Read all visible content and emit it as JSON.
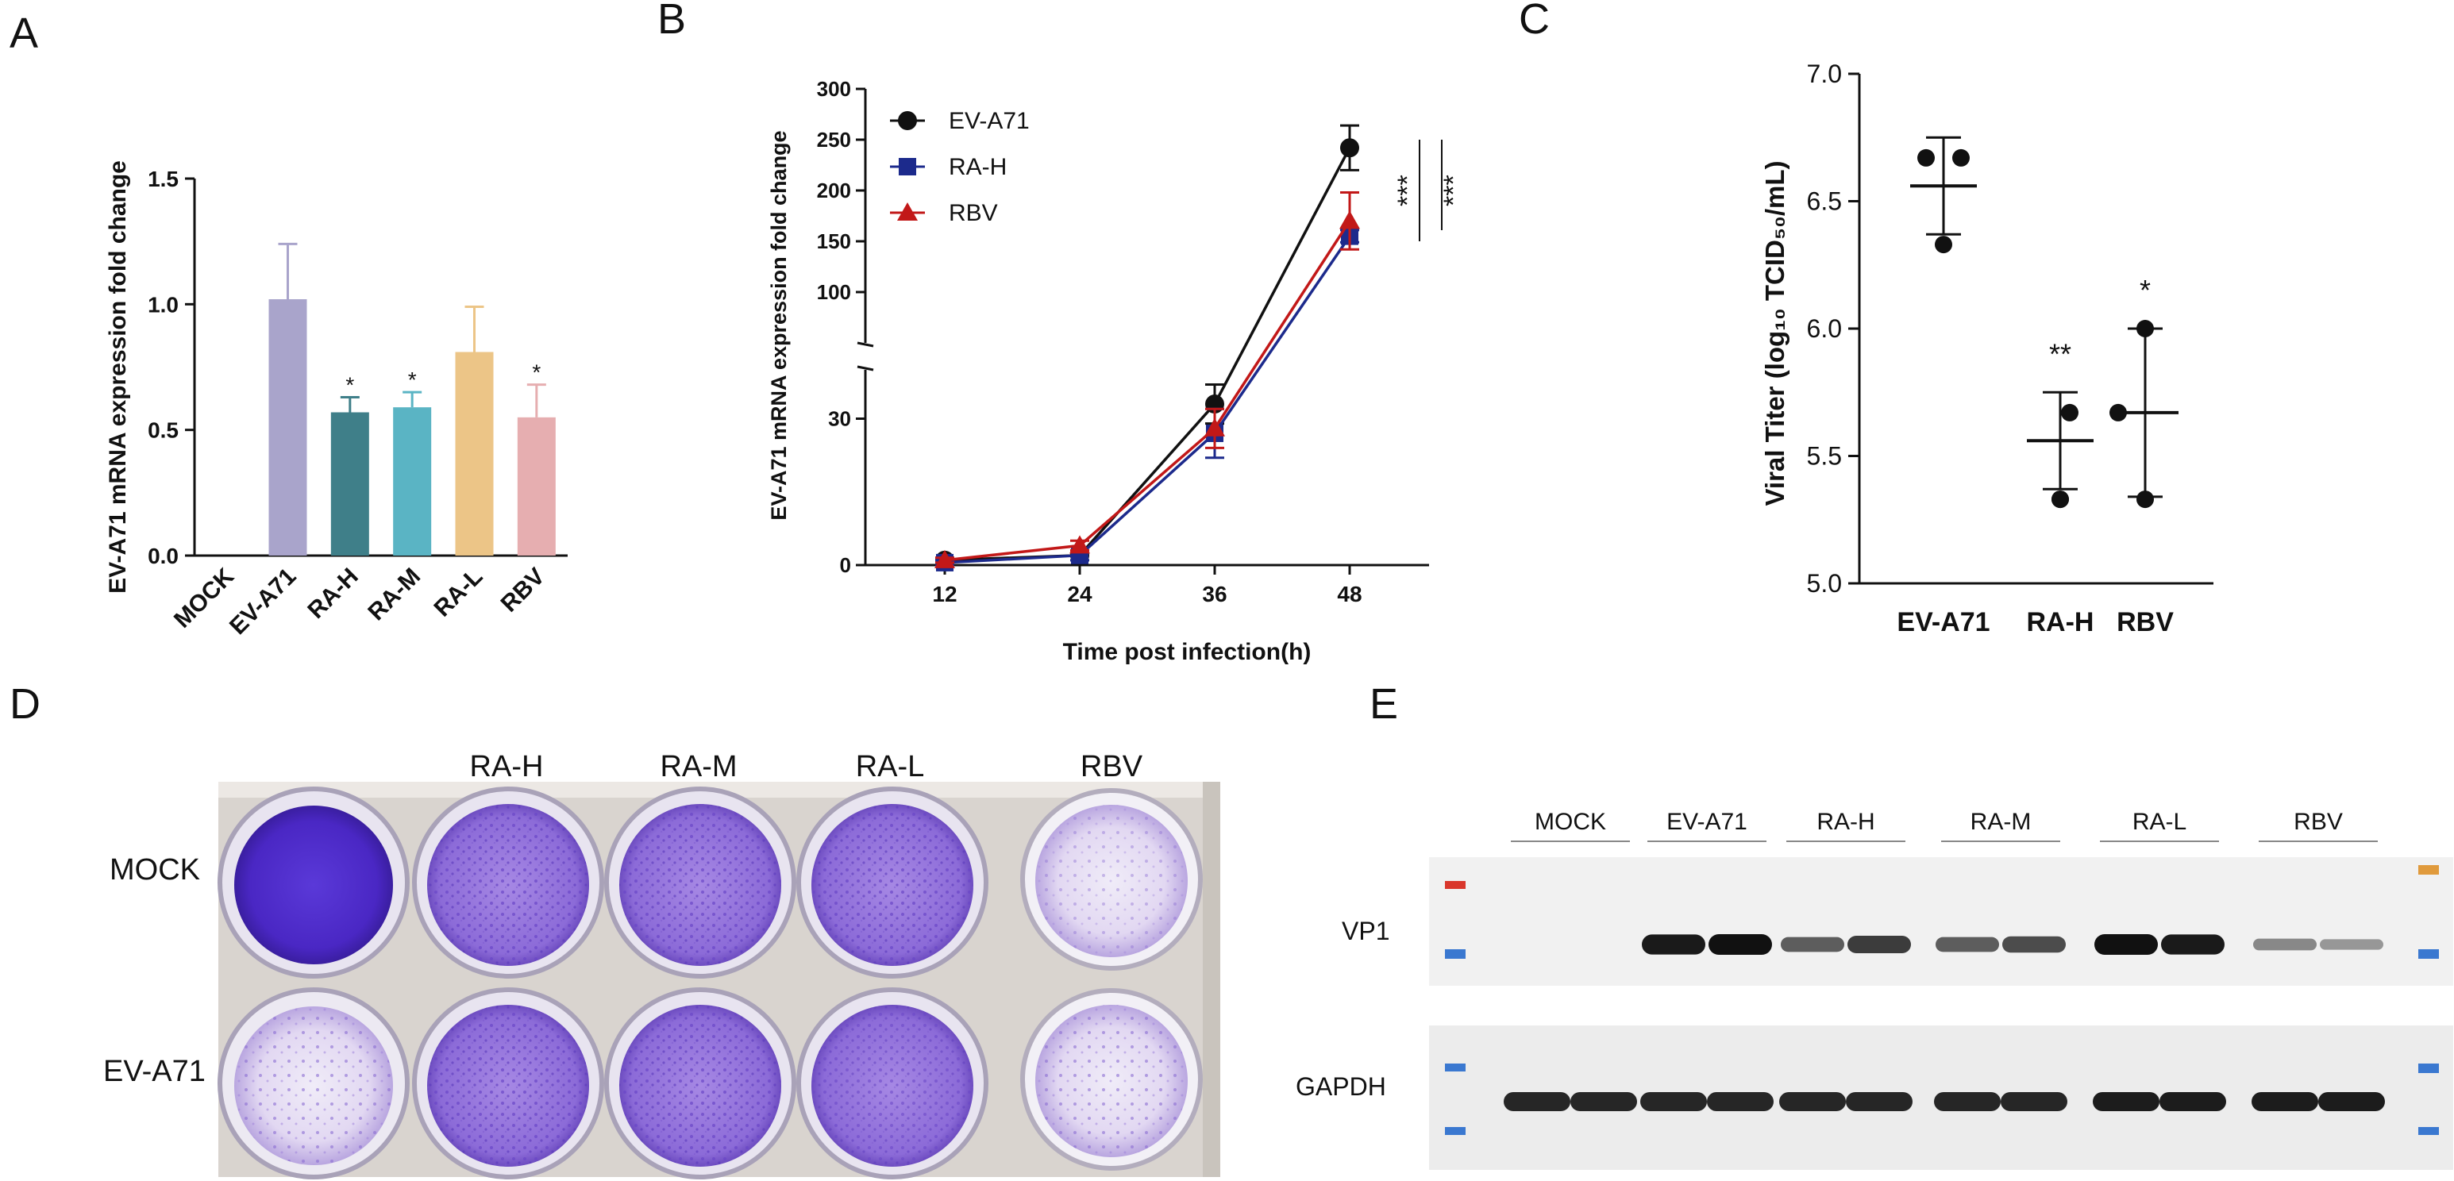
{
  "panels": {
    "A": "A",
    "B": "B",
    "C": "C",
    "D": "D",
    "E": "E"
  },
  "chart_data": [
    {
      "id": "A",
      "type": "bar",
      "ylabel": "EV-A71 mRNA expression fold change",
      "ylim": [
        0,
        1.5
      ],
      "yticks": [
        "0.0",
        "0.5",
        "1.0",
        "1.5"
      ],
      "categories": [
        "MOCK",
        "EV-A71",
        "RA-H",
        "RA-M",
        "RA-L",
        "RBV"
      ],
      "values": [
        0,
        1.02,
        0.57,
        0.59,
        0.81,
        0.55
      ],
      "errors": [
        0,
        0.22,
        0.06,
        0.06,
        0.18,
        0.13
      ],
      "significance": [
        "",
        "",
        "*",
        "*",
        "",
        "*"
      ],
      "colors": [
        "#a9a4cb",
        "#a9a4cb",
        "#3f7f89",
        "#5ab4c4",
        "#ecc587",
        "#e6aeb0"
      ]
    },
    {
      "id": "B",
      "type": "line",
      "xlabel": "Time post infection(h)",
      "ylabel": "EV-A71 mRNA expression fold change",
      "x": [
        12,
        24,
        36,
        48
      ],
      "yticks_upper": [
        "100",
        "150",
        "200",
        "250",
        "300"
      ],
      "yticks_lower": [
        "0",
        "30"
      ],
      "series": [
        {
          "name": "EV-A71",
          "values": [
            1,
            2,
            33,
            242
          ],
          "errors": [
            0.5,
            1,
            4,
            22
          ],
          "color": "#111111",
          "marker": "circle"
        },
        {
          "name": "RA-H",
          "values": [
            0.5,
            2,
            27,
            155
          ],
          "errors": [
            0.5,
            1,
            5,
            6
          ],
          "color": "#1c2a8c",
          "marker": "square"
        },
        {
          "name": "RBV",
          "values": [
            1,
            4,
            28,
            170
          ],
          "errors": [
            0.5,
            1,
            4,
            28
          ],
          "color": "#c21818",
          "marker": "triangle"
        }
      ],
      "annotations": [
        "***",
        "***"
      ]
    },
    {
      "id": "C",
      "type": "scatter",
      "ylabel": "Viral Titer (log₁₀ TCID₅₀/mL)",
      "ylim": [
        5.0,
        7.0
      ],
      "yticks": [
        "5.0",
        "5.5",
        "6.0",
        "6.5",
        "7.0"
      ],
      "categories": [
        "EV-A71",
        "RA-H",
        "RBV"
      ],
      "points": [
        [
          6.67,
          6.67,
          6.33
        ],
        [
          5.67,
          5.33,
          5.33
        ],
        [
          6.0,
          5.67,
          5.33
        ]
      ],
      "means": [
        6.56,
        5.56,
        5.67
      ],
      "sd": [
        0.19,
        0.19,
        0.33
      ],
      "significance": [
        "",
        "**",
        "*"
      ]
    }
  ],
  "panelD": {
    "columns": [
      "RA-H",
      "RA-M",
      "RA-L",
      "RBV"
    ],
    "rows": [
      "MOCK",
      "EV-A71"
    ]
  },
  "panelE": {
    "lanes": [
      "MOCK",
      "EV-A71",
      "RA-H",
      "RA-M",
      "RA-L",
      "RBV"
    ],
    "rows": [
      "VP1",
      "GAPDH"
    ],
    "vp1_intensity": [
      0,
      0,
      0.95,
      1.0,
      0.55,
      0.75,
      0.55,
      0.65,
      1.0,
      0.95,
      0.3,
      0.2
    ],
    "gapdh_intensity": [
      0.9,
      0.9,
      0.9,
      0.9,
      0.9,
      0.9,
      0.9,
      0.9,
      0.95,
      0.95,
      0.95,
      0.95
    ]
  }
}
